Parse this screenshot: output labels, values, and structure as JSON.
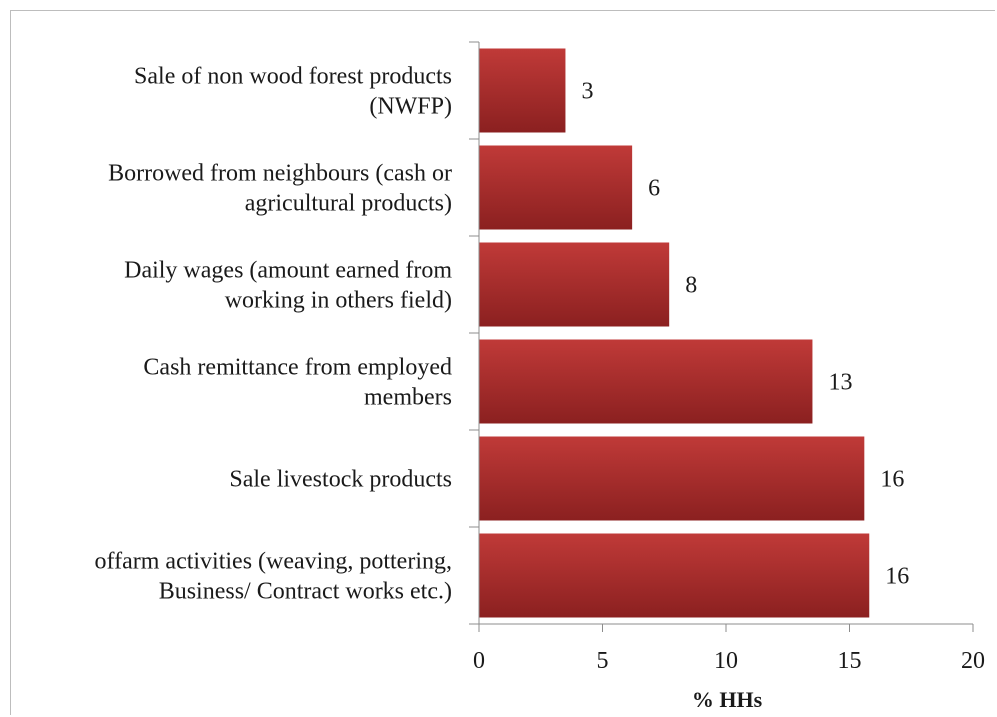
{
  "chart_data": {
    "type": "bar",
    "orientation": "horizontal",
    "categories": [
      [
        "Sale of non wood forest products",
        "(NWFP)"
      ],
      [
        "Borrowed from neighbours (cash or",
        "agricultural products)"
      ],
      [
        "Daily wages (amount earned from",
        "working in others field)"
      ],
      [
        "Cash remittance from employed",
        "members"
      ],
      [
        "Sale livestock products"
      ],
      [
        "offarm activities (weaving, pottering,",
        "Business/ Contract works etc.)"
      ]
    ],
    "values": [
      3.5,
      6.2,
      7.7,
      13.5,
      15.6,
      15.8
    ],
    "data_labels": [
      "3",
      "6",
      "8",
      "13",
      "16",
      "16"
    ],
    "xlabel": "% HHs",
    "xlim": [
      0,
      20
    ],
    "xticks": [
      "0",
      "5",
      "10",
      "15",
      "20"
    ],
    "grid": false,
    "colors": {
      "bar_top": "#c03a38",
      "bar_bottom": "#8b2020",
      "axis": "#8c8c8c"
    }
  }
}
